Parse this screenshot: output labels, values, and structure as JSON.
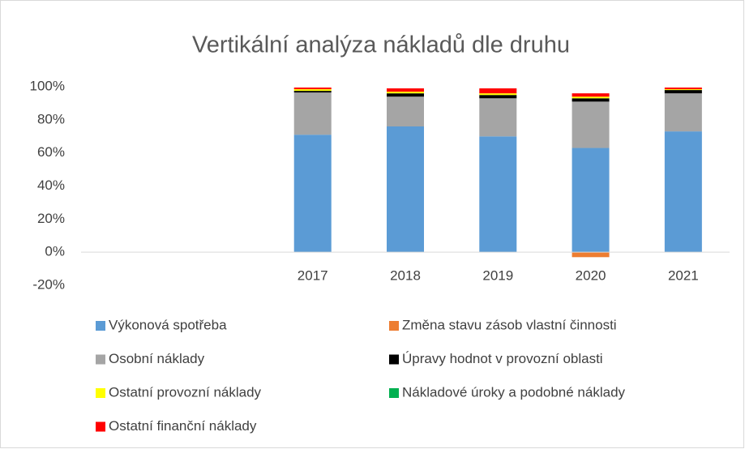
{
  "chart_data": {
    "type": "stacked_bar",
    "title": "Vertikální analýza nákladů dle druhu",
    "categories": [
      null,
      null,
      "2017",
      "2018",
      "2019",
      "2020",
      "2021"
    ],
    "series": [
      {
        "name": "Výkonová spotřeba",
        "color": "#5b9bd5",
        "values": [
          null,
          null,
          71,
          76,
          70,
          63,
          73
        ]
      },
      {
        "name": "Změna stavu zásob vlastní činnosti",
        "color": "#ed7d31",
        "values": [
          null,
          null,
          0,
          0,
          0,
          -3,
          0
        ]
      },
      {
        "name": "Osobní náklady",
        "color": "#a5a5a5",
        "values": [
          null,
          null,
          25.5,
          18,
          23,
          28,
          23
        ]
      },
      {
        "name": "Úpravy hodnot v provozní oblasti",
        "color": "#000000",
        "values": [
          null,
          null,
          1,
          2,
          2,
          2,
          2
        ]
      },
      {
        "name": "Ostatní provozní náklady",
        "color": "#ffff00",
        "values": [
          null,
          null,
          1,
          1,
          1,
          1,
          0.5
        ]
      },
      {
        "name": "Nákladové úroky a podobné náklady",
        "color": "#00b050",
        "values": [
          null,
          null,
          0,
          0,
          0,
          0,
          0
        ]
      },
      {
        "name": "Ostatní finanční náklady",
        "color": "#ff0000",
        "values": [
          null,
          null,
          1,
          2,
          3,
          2,
          1
        ]
      }
    ],
    "ylim": [
      -20,
      100
    ],
    "yticks": [
      {
        "value": -20,
        "label": "-20%"
      },
      {
        "value": 0,
        "label": "0%"
      },
      {
        "value": 20,
        "label": "20%"
      },
      {
        "value": 40,
        "label": "40%"
      },
      {
        "value": 60,
        "label": "60%"
      },
      {
        "value": 80,
        "label": "80%"
      },
      {
        "value": 100,
        "label": "100%"
      }
    ],
    "grid": false,
    "legend": "bottom"
  }
}
